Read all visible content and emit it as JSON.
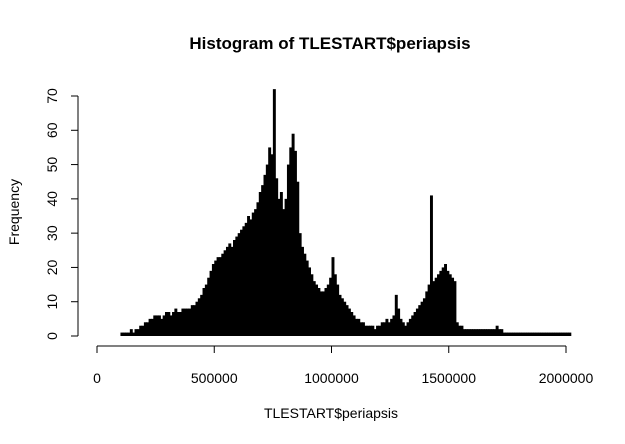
{
  "chart_data": {
    "type": "bar",
    "title": "Histogram of TLESTART$periapsis",
    "xlabel": "TLESTART$periapsis",
    "ylabel": "Frequency",
    "xlim": [
      0,
      2000000
    ],
    "ylim": [
      0,
      70
    ],
    "xticks": [
      0,
      500000,
      1000000,
      1500000,
      2000000
    ],
    "xtick_labels": [
      "0",
      "500000",
      "1000000",
      "1500000",
      "2000000"
    ],
    "yticks": [
      0,
      10,
      20,
      30,
      40,
      50,
      60,
      70
    ],
    "ytick_labels": [
      "0",
      "10",
      "20",
      "30",
      "40",
      "50",
      "60",
      "70"
    ],
    "bin_start": 0,
    "bin_width": 10000,
    "bin_counts": [
      0,
      0,
      0,
      0,
      0,
      0,
      0,
      0,
      0,
      0,
      1,
      1,
      1,
      1,
      2,
      1,
      2,
      2,
      3,
      3,
      4,
      4,
      5,
      5,
      6,
      6,
      6,
      5,
      6,
      7,
      7,
      6,
      7,
      8,
      7,
      7,
      8,
      8,
      8,
      8,
      9,
      9,
      10,
      11,
      12,
      14,
      15,
      17,
      19,
      21,
      22,
      23,
      23,
      24,
      25,
      26,
      27,
      26,
      28,
      29,
      30,
      31,
      32,
      33,
      35,
      34,
      36,
      37,
      39,
      42,
      44,
      47,
      50,
      55,
      53,
      72,
      46,
      40,
      42,
      37,
      40,
      50,
      55,
      59,
      54,
      45,
      30,
      26,
      24,
      22,
      20,
      18,
      16,
      15,
      14,
      13,
      13,
      14,
      15,
      17,
      23,
      18,
      15,
      12,
      11,
      10,
      9,
      8,
      7,
      6,
      5,
      5,
      4,
      4,
      3,
      3,
      3,
      3,
      2,
      3,
      3,
      4,
      4,
      5,
      4,
      5,
      6,
      12,
      8,
      5,
      4,
      3,
      4,
      5,
      6,
      7,
      8,
      9,
      10,
      11,
      13,
      15,
      41,
      16,
      17,
      18,
      19,
      20,
      21,
      19,
      18,
      17,
      16,
      4,
      3,
      3,
      2,
      2,
      2,
      2,
      2,
      2,
      2,
      2,
      2,
      2,
      2,
      2,
      2,
      2,
      3,
      2,
      2,
      1,
      1,
      1,
      1,
      1,
      1,
      1,
      1,
      1,
      1,
      1,
      1,
      1,
      1,
      1,
      1,
      1,
      1,
      1,
      1,
      1,
      1,
      1,
      1,
      1,
      1,
      1,
      1,
      1,
      0
    ],
    "bar_color": "#000000"
  }
}
